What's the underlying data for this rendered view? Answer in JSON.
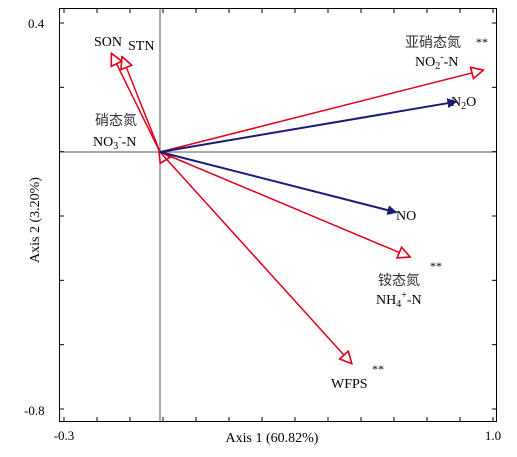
{
  "chart_data": {
    "type": "rda-biplot",
    "xlabel": "Axis 1 (60.82%)",
    "ylabel": "Axis 2 (3.20%)",
    "xlim": [
      -0.3,
      1.0
    ],
    "ylim": [
      -0.8,
      0.4
    ],
    "x_tick_labels": [
      "-0.3",
      "1.0"
    ],
    "y_tick_labels": [
      "0.4",
      "-0.8"
    ],
    "origin": [
      0,
      0
    ],
    "response_arrows": {
      "color": "#1a1a7a",
      "items": [
        {
          "name": "N2O",
          "label_main": "N",
          "label_sub": "2",
          "label_tail": "O",
          "x": 0.89,
          "y": 0.156
        },
        {
          "name": "NO",
          "label_main": "NO",
          "x": 0.71,
          "y": -0.188
        }
      ]
    },
    "explanatory_arrows": {
      "color": "#e0001a",
      "items": [
        {
          "name": "SON",
          "label": "SON",
          "x": -0.146,
          "y": 0.306
        },
        {
          "name": "STN",
          "label": "STN",
          "x": -0.114,
          "y": 0.296
        },
        {
          "name": "NO3-N",
          "label_cn": "硝态氮",
          "label_main": "NO",
          "label_sub": "3",
          "label_sup": "-",
          "label_tail": "-N",
          "x": -0.003,
          "y": 0.005
        },
        {
          "name": "NO2-N",
          "label_cn": "亚硝态氮",
          "label_main": "NO",
          "label_sub": "2",
          "label_sup": "-",
          "label_tail": "-N",
          "significance": "**",
          "x": 0.971,
          "y": 0.254
        },
        {
          "name": "NH4-N",
          "label_cn": "铵态氮",
          "label_main": "NH",
          "label_sub": "4",
          "label_sup": "+",
          "label_tail": "-N",
          "significance": "**",
          "x": 0.751,
          "y": -0.327
        },
        {
          "name": "WFPS",
          "label": "WFPS",
          "significance": "**",
          "x": 0.576,
          "y": -0.659
        }
      ]
    }
  }
}
